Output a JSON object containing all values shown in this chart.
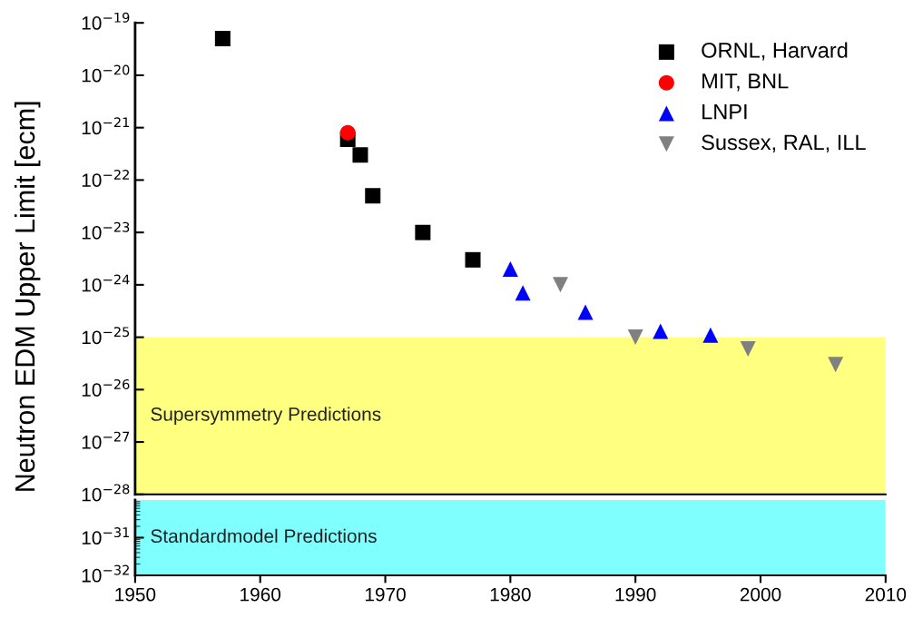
{
  "chart_data": [
    {
      "type": "scatter",
      "ylabel": "Neutron EDM Upper Limit [ecm]",
      "log": "y",
      "xlim": [
        1950,
        2010
      ],
      "ylim": [
        1e-28,
        1e-19
      ],
      "tick_labels": "y",
      "legend": "top right",
      "yticks": [
        {
          "value": 1e-28,
          "label": "10$^{−28}$"
        },
        {
          "value": 1e-27,
          "label": "10$^{−27}$"
        },
        {
          "value": 1e-26,
          "label": "10$^{−26}$"
        },
        {
          "value": 1e-25,
          "label": "10$^{−25}$"
        },
        {
          "value": 1e-24,
          "label": "10$^{−24}$"
        },
        {
          "value": 1e-23,
          "label": "10$^{−23}$"
        },
        {
          "value": 1e-22,
          "label": "10$^{−22}$"
        },
        {
          "value": 1e-21,
          "label": "10$^{−21}$"
        },
        {
          "value": 1e-20,
          "label": "10$^{−20}$"
        },
        {
          "value": 1e-19,
          "label": "10$^{−19}$"
        }
      ],
      "series": [
        {
          "name": "ORNL, Harvard",
          "color": "#000000",
          "marker": "square",
          "x": [
            1957,
            1967,
            1968,
            1969,
            1973,
            1977
          ],
          "values": [
            5e-20,
            6e-22,
            3e-22,
            5e-23,
            1e-23,
            3e-24
          ]
        },
        {
          "name": "MIT, BNL",
          "color": "#ff0000",
          "marker": "circle",
          "x": [
            1967
          ],
          "values": [
            8e-22
          ]
        },
        {
          "name": "LNPI",
          "color": "#0000ff",
          "marker": "triangle",
          "x": [
            1980,
            1981,
            1986,
            1992,
            1996
          ],
          "values": [
            2e-24,
            7e-25,
            3e-25,
            1.3e-25,
            1.1e-25
          ]
        },
        {
          "name": "Sussex, RAL, ILL",
          "color": "#808080",
          "marker": "triangle_down",
          "x": [
            1984,
            1990,
            1999,
            2006
          ],
          "values": [
            1e-24,
            1e-25,
            6e-26,
            3e-26
          ]
        }
      ],
      "bands": [
        {
          "axis": "y",
          "from": 1e-28,
          "to": 1e-25,
          "label": "Supersymmetry Predictions",
          "color": "#ffff80"
        }
      ]
    },
    {
      "type": "scatter",
      "log": "y",
      "xlim": [
        1950,
        2010
      ],
      "ylim": [
        1e-32,
        1e-30
      ],
      "xticks": [
        1950,
        1960,
        1970,
        1980,
        1990,
        2000,
        2010
      ],
      "yticks": [
        {
          "value": 1e-32,
          "label": "10$^{−32}$"
        },
        {
          "value": 1e-31,
          "label": "10$^{−31}$"
        }
      ],
      "bands": [
        {
          "axis": "y",
          "from": 1e-32,
          "to": 1e-30,
          "label": "Standardmodel Predictions",
          "color": "#80ffff"
        }
      ]
    }
  ]
}
